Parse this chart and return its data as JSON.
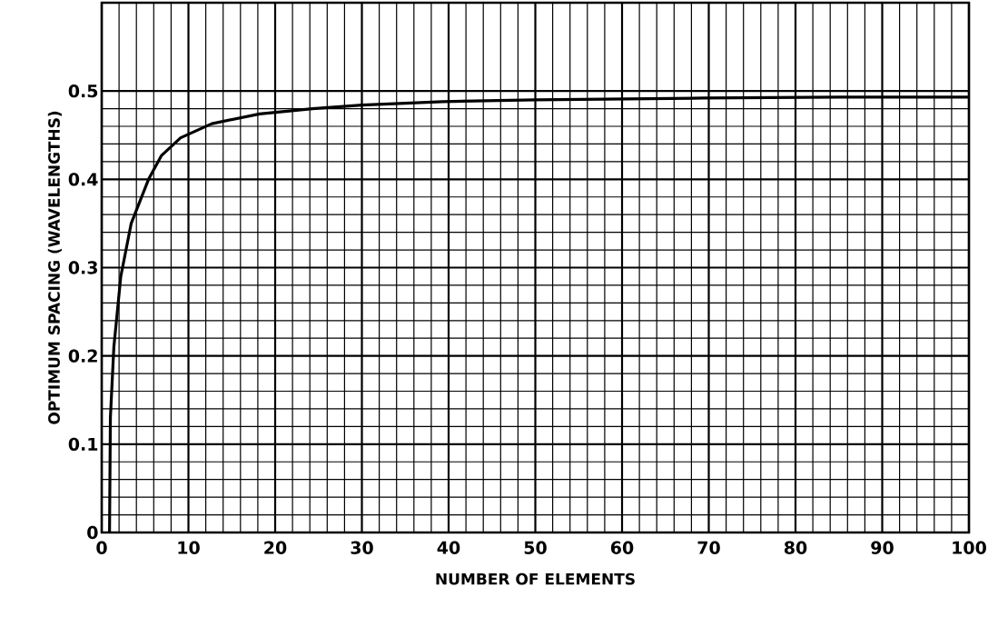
{
  "chart_data": {
    "type": "line",
    "xlabel": "NUMBER OF ELEMENTS",
    "ylabel": "OPTIMUM SPACING (WAVELENGTHS)",
    "x": [
      0.9,
      1.0,
      1.4,
      2.2,
      3.4,
      5.4,
      6.9,
      9.1,
      12.7,
      18.2,
      24.3,
      30,
      39.3,
      50,
      69.3,
      85,
      100
    ],
    "series": [
      {
        "color": "#000000",
        "values": [
          0.0,
          0.13,
          0.21,
          0.29,
          0.35,
          0.4,
          0.427,
          0.447,
          0.463,
          0.474,
          0.48,
          0.484,
          0.488,
          0.49,
          0.492,
          0.493,
          0.493
        ]
      }
    ],
    "xlim": [
      0,
      100
    ],
    "ylim": [
      0,
      0.6
    ],
    "xticks": [
      0,
      10,
      20,
      30,
      40,
      50,
      60,
      70,
      80,
      90,
      100
    ],
    "yticks": [
      0,
      0.1,
      0.2,
      0.3,
      0.4,
      0.5
    ],
    "grid": true,
    "marker": "none",
    "line_style": "solid"
  }
}
